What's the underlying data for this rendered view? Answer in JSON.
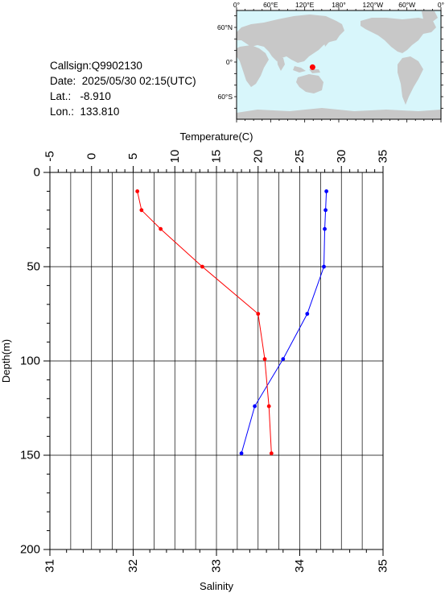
{
  "meta": {
    "callsign_label": "Callsign:",
    "callsign": "Q9902130",
    "date_label": "Date:",
    "date": "2025/05/30 02:15(UTC)",
    "lat_label": "Lat.:",
    "lat": "-8.910",
    "lon_label": "Lon.:",
    "lon": "133.810"
  },
  "map": {
    "top_labels": [
      "0°",
      "60°E",
      "120°E",
      "180°",
      "120°W",
      "60°W",
      "0°"
    ],
    "left_labels": [
      "60°N",
      "0°",
      "60°S"
    ],
    "ocean_color": "#d8f6fb",
    "land_color": "#c8c8c8",
    "marker_color": "#ff0000",
    "marker": {
      "lon": 133.81,
      "lat": -8.91
    }
  },
  "chart_data": {
    "type": "line",
    "xlabel_top": "Temperature(C)",
    "xlabel_bottom": "Salinity",
    "ylabel": "Depth(m)",
    "temperature_ticks": [
      "-5",
      "0",
      "5",
      "10",
      "15",
      "20",
      "25",
      "30",
      "35"
    ],
    "salinity_ticks": [
      "31",
      "32",
      "33",
      "34",
      "35"
    ],
    "depth_ticks": [
      "0",
      "50",
      "100",
      "150",
      "200"
    ],
    "temperature_range": [
      -5,
      35
    ],
    "salinity_range": [
      31,
      35
    ],
    "depth_range": [
      0,
      200
    ],
    "grid": true,
    "series": [
      {
        "color": "#0000ff",
        "axis": "temperature",
        "x": [
          28.2,
          28.1,
          28.0,
          27.9,
          25.9,
          23.0,
          19.6,
          18.0
        ],
        "depth": [
          10,
          20,
          30,
          50,
          75,
          99,
          124,
          149
        ]
      },
      {
        "color": "#ff0000",
        "axis": "salinity",
        "x": [
          32.05,
          32.1,
          32.33,
          32.83,
          33.5,
          33.58,
          33.63,
          33.66
        ],
        "depth": [
          10,
          20,
          30,
          50,
          75,
          99,
          124,
          149
        ]
      }
    ]
  }
}
